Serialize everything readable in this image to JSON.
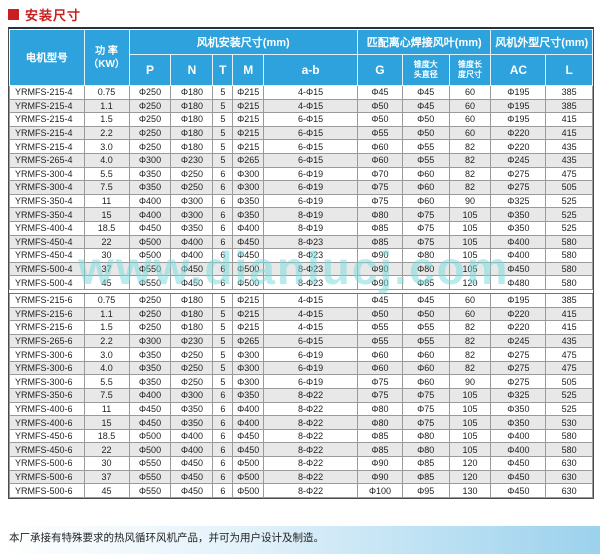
{
  "page": {
    "title": "安装尺寸",
    "footer_note": "本厂承接有特殊要求的热风循环风机产品，并可为用户设计及制造。",
    "watermark": "www.dianlucj.com"
  },
  "colors": {
    "header_blue": "#2ea2dc",
    "title_red": "#c91f1f",
    "row_alt_gray": "#e8e8e8",
    "watermark_cyan": "rgba(126,219,221,0.55)"
  },
  "table": {
    "group_headers": {
      "model": "电机型号",
      "power": "功 率\n（KW）",
      "install": "风机安装尺寸(mm)",
      "blade": "匹配离心焊接风叶(mm)",
      "outline": "风机外型尺寸(mm)"
    },
    "sub_headers": {
      "p": "P",
      "n": "N",
      "t": "T",
      "m": "M",
      "ab": "a-b",
      "g": "G",
      "taper_dia": "锥度大\n头直径",
      "taper_len": "锥度长\n度尺寸",
      "ac": "AC",
      "l": "L"
    },
    "groups": [
      {
        "rows": [
          [
            "YRMFS-215-4",
            "0.75",
            "Φ250",
            "Φ180",
            "5",
            "Φ215",
            "4-Φ15",
            "Φ45",
            "Φ45",
            "60",
            "Φ195",
            "385"
          ],
          [
            "YRMFS-215-4",
            "1.1",
            "Φ250",
            "Φ180",
            "5",
            "Φ215",
            "4-Φ15",
            "Φ50",
            "Φ45",
            "60",
            "Φ195",
            "385"
          ],
          [
            "YRMFS-215-4",
            "1.5",
            "Φ250",
            "Φ180",
            "5",
            "Φ215",
            "6-Φ15",
            "Φ50",
            "Φ50",
            "60",
            "Φ195",
            "415"
          ],
          [
            "YRMFS-215-4",
            "2.2",
            "Φ250",
            "Φ180",
            "5",
            "Φ215",
            "6-Φ15",
            "Φ55",
            "Φ50",
            "60",
            "Φ220",
            "415"
          ],
          [
            "YRMFS-215-4",
            "3.0",
            "Φ250",
            "Φ180",
            "5",
            "Φ215",
            "6-Φ15",
            "Φ60",
            "Φ55",
            "82",
            "Φ220",
            "435"
          ],
          [
            "YRMFS-265-4",
            "4.0",
            "Φ300",
            "Φ230",
            "5",
            "Φ265",
            "6-Φ15",
            "Φ60",
            "Φ55",
            "82",
            "Φ245",
            "435"
          ],
          [
            "YRMFS-300-4",
            "5.5",
            "Φ350",
            "Φ250",
            "6",
            "Φ300",
            "6-Φ19",
            "Φ70",
            "Φ60",
            "82",
            "Φ275",
            "475"
          ],
          [
            "YRMFS-300-4",
            "7.5",
            "Φ350",
            "Φ250",
            "6",
            "Φ300",
            "6-Φ19",
            "Φ75",
            "Φ60",
            "82",
            "Φ275",
            "505"
          ],
          [
            "YRMFS-350-4",
            "11",
            "Φ400",
            "Φ300",
            "6",
            "Φ350",
            "6-Φ19",
            "Φ75",
            "Φ60",
            "90",
            "Φ325",
            "525"
          ],
          [
            "YRMFS-350-4",
            "15",
            "Φ400",
            "Φ300",
            "6",
            "Φ350",
            "8-Φ19",
            "Φ80",
            "Φ75",
            "105",
            "Φ350",
            "525"
          ],
          [
            "YRMFS-400-4",
            "18.5",
            "Φ450",
            "Φ350",
            "6",
            "Φ400",
            "8-Φ19",
            "Φ85",
            "Φ75",
            "105",
            "Φ350",
            "525"
          ],
          [
            "YRMFS-450-4",
            "22",
            "Φ500",
            "Φ400",
            "6",
            "Φ450",
            "8-Φ23",
            "Φ85",
            "Φ75",
            "105",
            "Φ400",
            "580"
          ],
          [
            "YRMFS-450-4",
            "30",
            "Φ500",
            "Φ400",
            "6",
            "Φ450",
            "8-Φ23",
            "Φ90",
            "Φ80",
            "105",
            "Φ400",
            "580"
          ],
          [
            "YRMFS-500-4",
            "37",
            "Φ550",
            "Φ450",
            "6",
            "Φ500",
            "8-Φ23",
            "Φ90",
            "Φ80",
            "105",
            "Φ450",
            "580"
          ],
          [
            "YRMFS-500-4",
            "45",
            "Φ550",
            "Φ450",
            "6",
            "Φ500",
            "8-Φ23",
            "Φ90",
            "Φ85",
            "120",
            "Φ480",
            "580"
          ]
        ]
      },
      {
        "rows": [
          [
            "YRMFS-215-6",
            "0.75",
            "Φ250",
            "Φ180",
            "5",
            "Φ215",
            "4-Φ15",
            "Φ45",
            "Φ45",
            "60",
            "Φ195",
            "385"
          ],
          [
            "YRMFS-215-6",
            "1.1",
            "Φ250",
            "Φ180",
            "5",
            "Φ215",
            "4-Φ15",
            "Φ50",
            "Φ50",
            "60",
            "Φ220",
            "415"
          ],
          [
            "YRMFS-215-6",
            "1.5",
            "Φ250",
            "Φ180",
            "5",
            "Φ215",
            "4-Φ15",
            "Φ55",
            "Φ55",
            "82",
            "Φ220",
            "415"
          ],
          [
            "YRMFS-265-6",
            "2.2",
            "Φ300",
            "Φ230",
            "5",
            "Φ265",
            "6-Φ15",
            "Φ55",
            "Φ55",
            "82",
            "Φ245",
            "435"
          ],
          [
            "YRMFS-300-6",
            "3.0",
            "Φ350",
            "Φ250",
            "5",
            "Φ300",
            "6-Φ19",
            "Φ60",
            "Φ60",
            "82",
            "Φ275",
            "475"
          ],
          [
            "YRMFS-300-6",
            "4.0",
            "Φ350",
            "Φ250",
            "5",
            "Φ300",
            "6-Φ19",
            "Φ60",
            "Φ60",
            "82",
            "Φ275",
            "475"
          ],
          [
            "YRMFS-300-6",
            "5.5",
            "Φ350",
            "Φ250",
            "5",
            "Φ300",
            "6-Φ19",
            "Φ75",
            "Φ60",
            "90",
            "Φ275",
            "505"
          ],
          [
            "YRMFS-350-6",
            "7.5",
            "Φ400",
            "Φ300",
            "6",
            "Φ350",
            "8-Φ22",
            "Φ75",
            "Φ75",
            "105",
            "Φ325",
            "525"
          ],
          [
            "YRMFS-400-6",
            "11",
            "Φ450",
            "Φ350",
            "6",
            "Φ400",
            "8-Φ22",
            "Φ80",
            "Φ75",
            "105",
            "Φ350",
            "525"
          ],
          [
            "YRMFS-400-6",
            "15",
            "Φ450",
            "Φ350",
            "6",
            "Φ400",
            "8-Φ22",
            "Φ80",
            "Φ75",
            "105",
            "Φ350",
            "530"
          ],
          [
            "YRMFS-450-6",
            "18.5",
            "Φ500",
            "Φ400",
            "6",
            "Φ450",
            "8-Φ22",
            "Φ85",
            "Φ80",
            "105",
            "Φ400",
            "580"
          ],
          [
            "YRMFS-450-6",
            "22",
            "Φ500",
            "Φ400",
            "6",
            "Φ450",
            "8-Φ22",
            "Φ85",
            "Φ80",
            "105",
            "Φ400",
            "580"
          ],
          [
            "YRMFS-500-6",
            "30",
            "Φ550",
            "Φ450",
            "6",
            "Φ500",
            "8-Φ22",
            "Φ90",
            "Φ85",
            "120",
            "Φ450",
            "630"
          ],
          [
            "YRMFS-500-6",
            "37",
            "Φ550",
            "Φ450",
            "6",
            "Φ500",
            "8-Φ22",
            "Φ90",
            "Φ85",
            "120",
            "Φ450",
            "630"
          ],
          [
            "YRMFS-500-6",
            "45",
            "Φ550",
            "Φ450",
            "6",
            "Φ500",
            "8-Φ22",
            "Φ100",
            "Φ95",
            "130",
            "Φ450",
            "630"
          ]
        ]
      }
    ]
  }
}
